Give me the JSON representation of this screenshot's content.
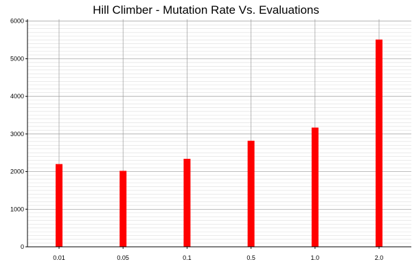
{
  "chart_data": {
    "type": "bar",
    "title": "Hill Climber - Mutation Rate Vs. Evaluations",
    "xlabel": "",
    "ylabel": "",
    "categories": [
      "0.01",
      "0.05",
      "0.1",
      "0.5",
      "1.0",
      "2.0"
    ],
    "values": [
      2200,
      2020,
      2340,
      2820,
      3170,
      5510
    ],
    "ylim": [
      0,
      6050
    ],
    "yticks": [
      0,
      1000,
      2000,
      3000,
      4000,
      5000,
      6000
    ],
    "minor_grid_step": 100,
    "grid": true,
    "bar_color": "#ff0000",
    "major_grid_color": "#999999",
    "minor_grid_color": "#dddddd"
  }
}
